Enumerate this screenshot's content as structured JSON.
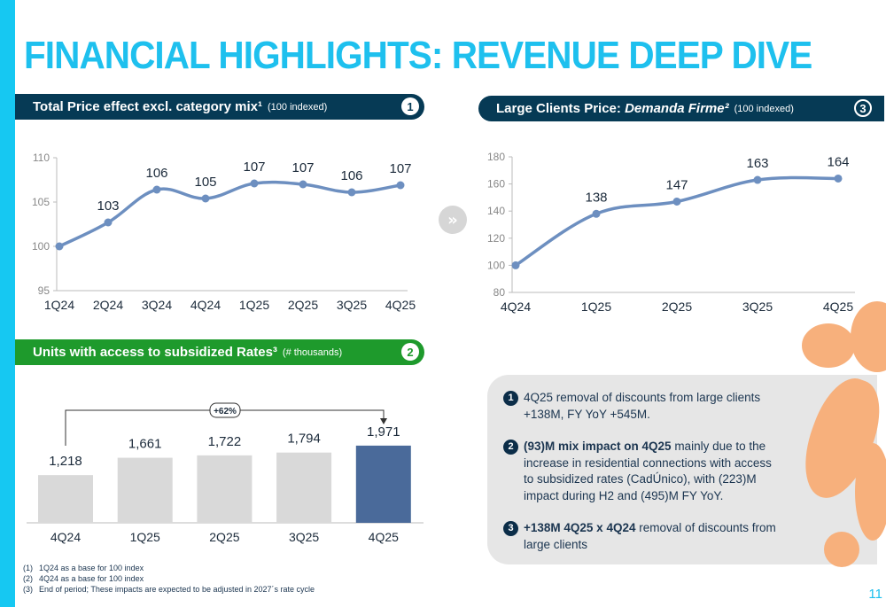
{
  "title": "FINANCIAL HIGHLIGHTS: REVENUE DEEP DIVE",
  "panel1": {
    "title": "Total Price effect excl. category mix¹",
    "subtitle": "(100 indexed)",
    "num": "1"
  },
  "panel2": {
    "title": "Units with access to subsidized Rates³",
    "subtitle": "(# thousands)",
    "num": "2"
  },
  "panel3": {
    "title": "Large Clients Price: ",
    "title_em": "Demanda Firme²",
    "subtitle": "(100 indexed)",
    "num": "3"
  },
  "arrow_icon": "»",
  "notes": [
    {
      "num": "1",
      "bold": "",
      "text": "4Q25 removal of discounts from large clients +138M, FY YoY +545M."
    },
    {
      "num": "2",
      "bold": "(93)M mix impact on 4Q25",
      "text": " mainly due to the increase in residential connections with access to subsidized rates (CadÚnico), with (223)M impact during H2 and (495)M FY YoY."
    },
    {
      "num": "3",
      "bold": "+138M 4Q25 x 4Q24",
      "text": " removal of discounts from large clients"
    }
  ],
  "footnotes": [
    {
      "n": "(1)",
      "t": "1Q24 as a base for 100 index"
    },
    {
      "n": "(2)",
      "t": "4Q24 as a base for 100 index"
    },
    {
      "n": "(3)",
      "t": "End of period; These impacts are expected to be adjusted in 2027´s rate cycle"
    }
  ],
  "page_number": "11",
  "chart_data": [
    {
      "type": "line",
      "title": "Total Price effect excl. category mix (100 indexed)",
      "categories": [
        "1Q24",
        "2Q24",
        "3Q24",
        "4Q24",
        "1Q25",
        "2Q25",
        "3Q25",
        "4Q25"
      ],
      "values": [
        100,
        102.7,
        106.4,
        105.4,
        107.1,
        107,
        106.1,
        106.9
      ],
      "labels": [
        "",
        "103",
        "106",
        "105",
        "107",
        "107",
        "106",
        "107"
      ],
      "ylim": [
        95,
        110
      ],
      "yticks": [
        95,
        100,
        105,
        110
      ],
      "color": "#6d8fc0"
    },
    {
      "type": "line",
      "title": "Large Clients Price: Demanda Firme (100 indexed)",
      "categories": [
        "4Q24",
        "1Q25",
        "2Q25",
        "3Q25",
        "4Q25"
      ],
      "values": [
        100,
        138,
        147,
        163,
        164
      ],
      "labels": [
        "",
        "138",
        "147",
        "163",
        "164"
      ],
      "ylim": [
        80,
        180
      ],
      "yticks": [
        80,
        100,
        120,
        140,
        160,
        180
      ],
      "color": "#6d8fc0"
    },
    {
      "type": "bar",
      "title": "Units with access to subsidized Rates (# thousands)",
      "categories": [
        "4Q24",
        "1Q25",
        "2Q25",
        "3Q25",
        "4Q25"
      ],
      "values": [
        1218,
        1661,
        1722,
        1794,
        1971
      ],
      "labels": [
        "1,218",
        "1,661",
        "1,722",
        "1,794",
        "1,971"
      ],
      "annotation": "+62%",
      "colors": [
        "#d9d9d9",
        "#d9d9d9",
        "#d9d9d9",
        "#d9d9d9",
        "#4a6a9a"
      ]
    }
  ]
}
